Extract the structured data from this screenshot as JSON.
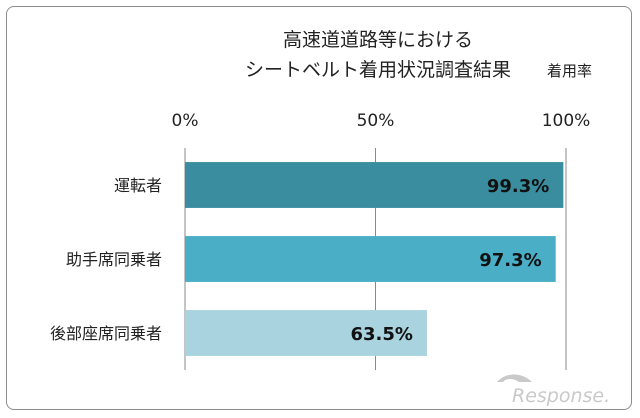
{
  "chart_data": {
    "type": "bar",
    "orientation": "horizontal",
    "title_lines": [
      "高速道道路等における",
      "シートベルト着用状況調査結果"
    ],
    "subtitle": "着用率",
    "categories": [
      "運転者",
      "助手席同乗者",
      "後部座席同乗者"
    ],
    "values": [
      99.3,
      97.3,
      63.5
    ],
    "value_labels": [
      "99.3%",
      "97.3%",
      "63.5%"
    ],
    "xlim": [
      0,
      100
    ],
    "x_ticks": [
      0,
      50,
      100
    ],
    "x_tick_labels": [
      "0%",
      "50%",
      "100%"
    ],
    "x_axis_position": "top",
    "grid": true,
    "legend": "none",
    "colors": [
      "#3a8d9e",
      "#4aaec6",
      "#a9d3df"
    ]
  },
  "watermark": {
    "text": "Response."
  }
}
